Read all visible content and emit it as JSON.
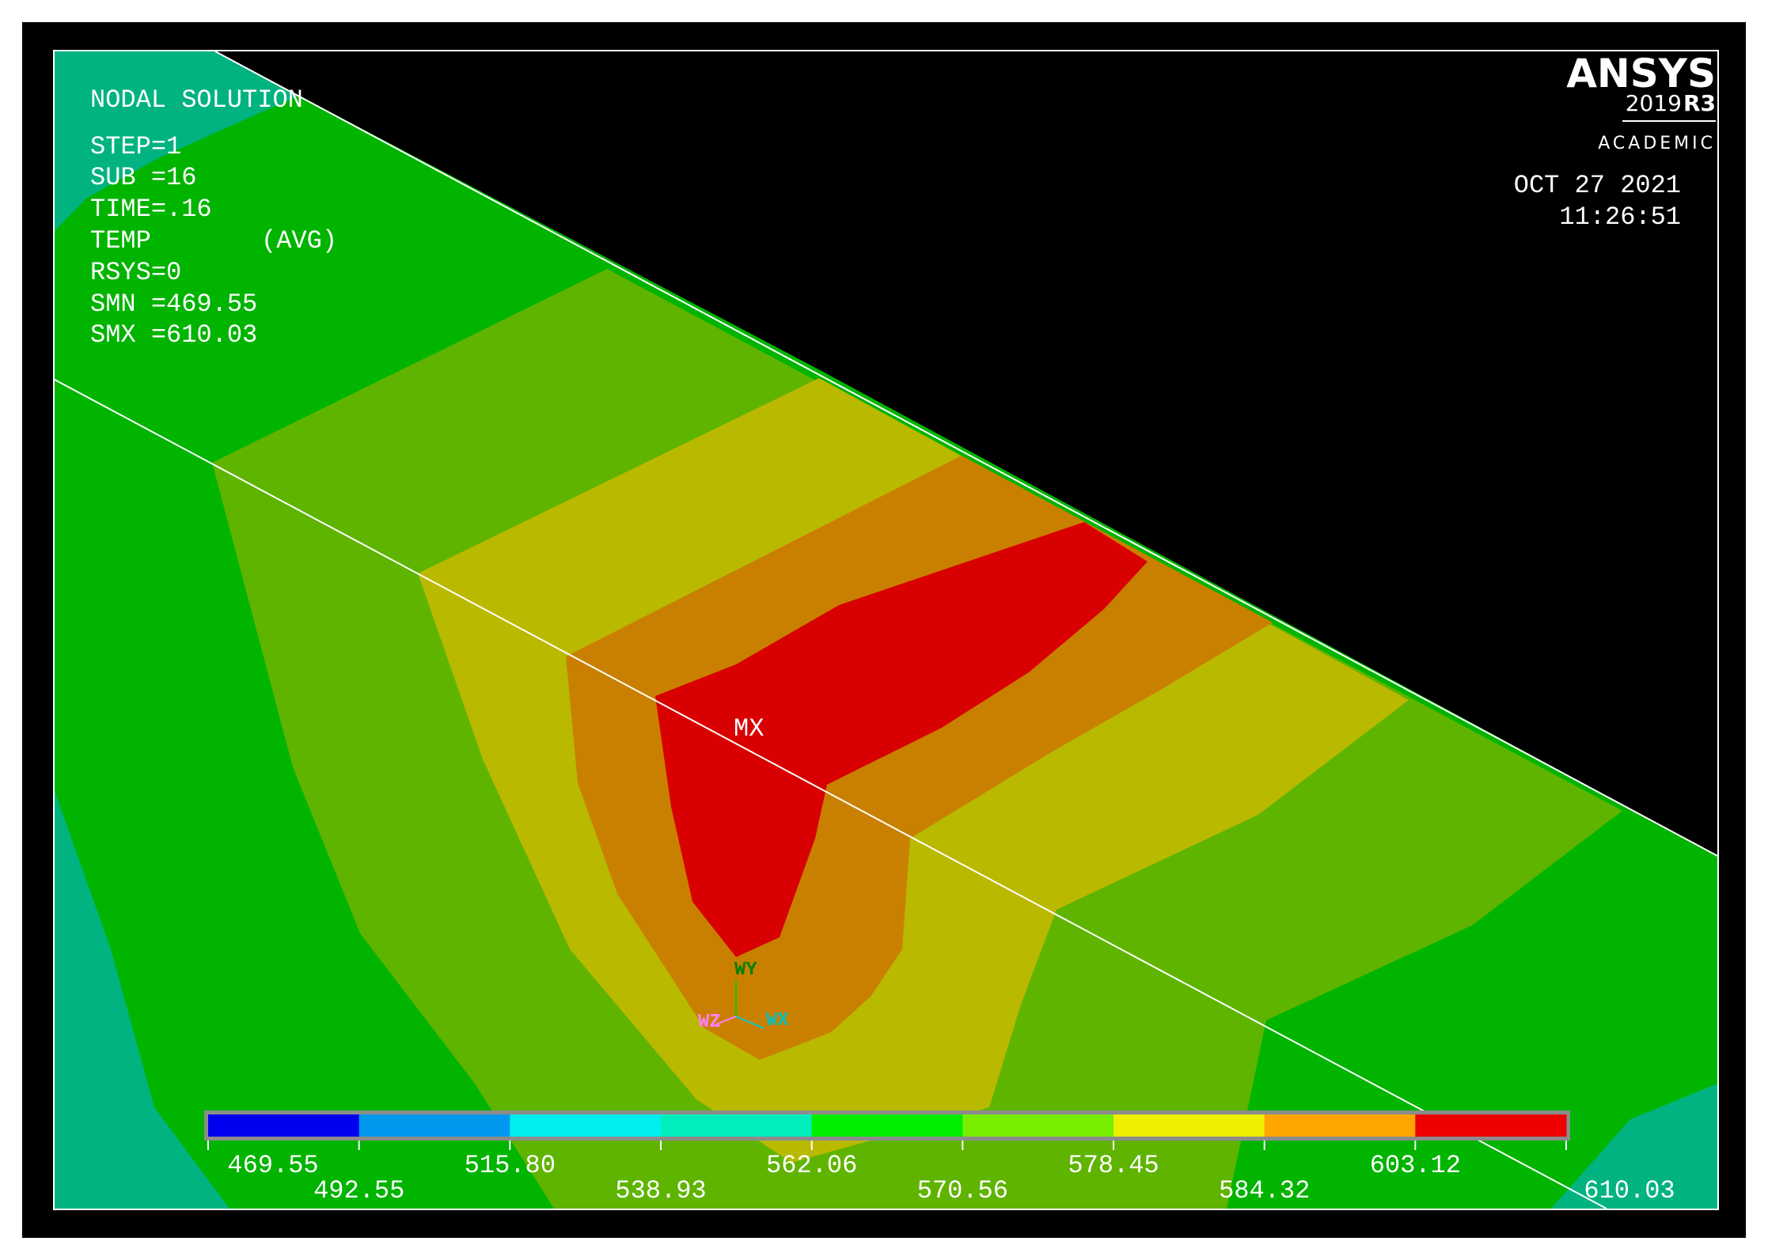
{
  "app": {
    "brand": "ANSYS",
    "version_year": "2019",
    "version_release": "R3",
    "edition": "ACADEMIC"
  },
  "timestamp": {
    "date": "OCT 27 2021",
    "time": "11:26:51"
  },
  "solution_info": {
    "title": "NODAL SOLUTION",
    "step": "STEP=1",
    "sub": "SUB =16",
    "time": "TIME=.16",
    "quantity": "TEMP",
    "averaging": "(AVG)",
    "rsys": "RSYS=0",
    "smn": "SMN =469.55",
    "smx": "SMX =610.03"
  },
  "plot": {
    "max_marker": "MX",
    "triad": {
      "y": "WY",
      "z": "WZ",
      "x": "WX"
    }
  },
  "legend": {
    "labels": [
      "469.55",
      "492.55",
      "515.80",
      "538.93",
      "562.06",
      "570.56",
      "578.45",
      "584.32",
      "603.12",
      "610.03"
    ],
    "colors": [
      "#0000ee",
      "#0097ee",
      "#00eeee",
      "#00eebb",
      "#00ee00",
      "#77ee00",
      "#eeee00",
      "#ffa500",
      "#ee0000"
    ]
  },
  "colors": {
    "background": "#000000",
    "frame": "#ffffff",
    "contour_teal": "#00b380",
    "contour_green": "#00b400",
    "contour_lime": "#5fb400",
    "contour_yellow": "#b9b900",
    "contour_orange": "#c98000",
    "contour_red": "#d80000"
  }
}
